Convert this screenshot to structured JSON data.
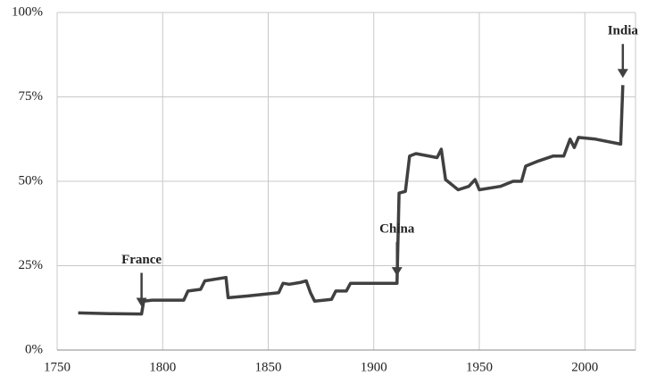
{
  "chart_data": {
    "type": "line",
    "x": [
      1760,
      1775,
      1790,
      1791,
      1795,
      1810,
      1812,
      1818,
      1820,
      1830,
      1831,
      1840,
      1855,
      1857,
      1860,
      1865,
      1868,
      1870,
      1872,
      1880,
      1882,
      1887,
      1889,
      1911,
      1912,
      1915,
      1917,
      1920,
      1930,
      1932,
      1934,
      1940,
      1945,
      1948,
      1950,
      1960,
      1966,
      1970,
      1972,
      1978,
      1985,
      1990,
      1993,
      1995,
      1997,
      2005,
      2017,
      2018
    ],
    "series": [
      {
        "color": "#404040",
        "values": [
          11,
          10.8,
          10.7,
          14.5,
          14.8,
          14.8,
          17.5,
          18,
          20.5,
          21.5,
          15.5,
          16,
          17,
          19.8,
          19.5,
          20,
          20.5,
          17,
          14.5,
          15,
          17.5,
          17.5,
          19.8,
          19.8,
          46.5,
          47,
          57.5,
          58.2,
          57,
          59.5,
          50.5,
          47.5,
          48.5,
          50.5,
          47.5,
          48.5,
          50,
          50,
          54.5,
          56,
          57.5,
          57.5,
          62.5,
          60,
          63,
          62.5,
          61,
          78.5
        ]
      }
    ],
    "xlim": [
      1750,
      2024
    ],
    "xticks": [
      1750,
      1800,
      1850,
      1900,
      1950,
      2000
    ],
    "ylim": [
      0,
      100
    ],
    "yticks": [
      {
        "value": 0,
        "label": "0%"
      },
      {
        "value": 25,
        "label": "25%"
      },
      {
        "value": 50,
        "label": "50%"
      },
      {
        "value": 75,
        "label": "75%"
      },
      {
        "value": 100,
        "label": "100%"
      }
    ],
    "grid": true,
    "annotations": [
      {
        "text": "France",
        "x": 1790
      },
      {
        "text": "China",
        "x": 1911
      },
      {
        "text": "India",
        "x": 2018
      }
    ]
  }
}
